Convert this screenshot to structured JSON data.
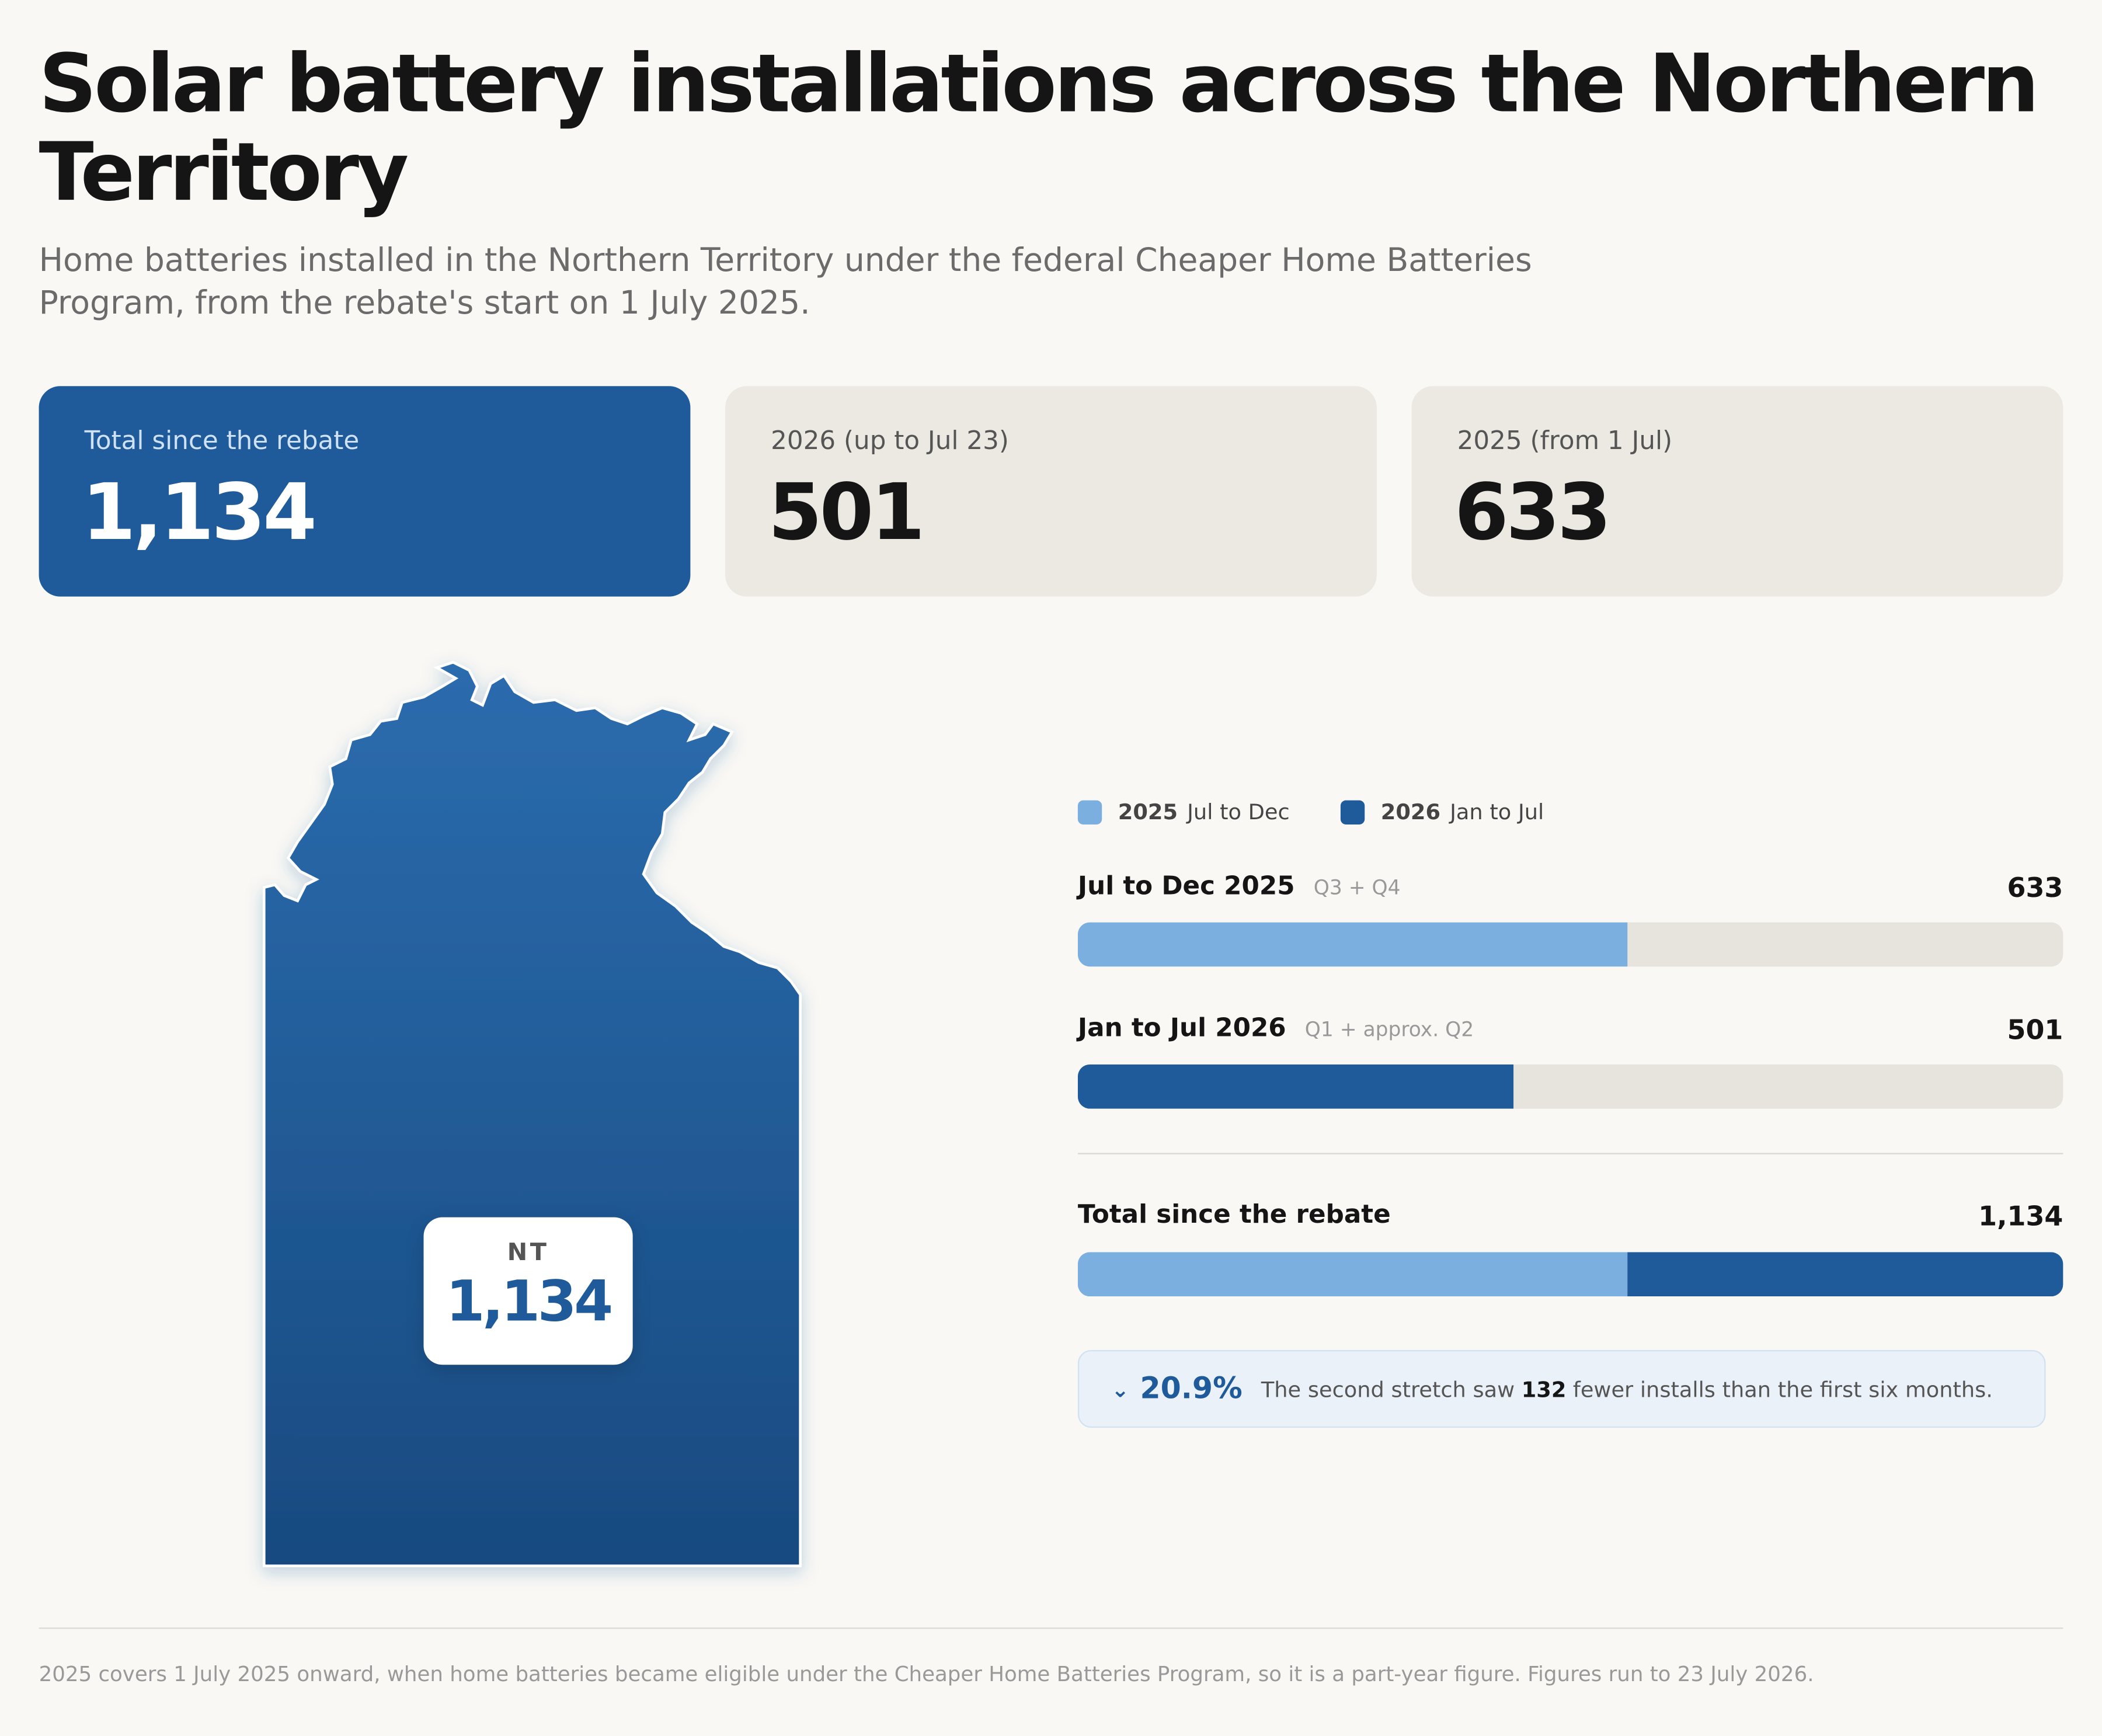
{
  "header": {
    "title": "Solar battery installations across the Northern Territory",
    "subtitle": "Home batteries installed in the Northern Territory under the federal Cheaper Home Batteries Program, from the rebate's start on 1 July 2025."
  },
  "cards": [
    {
      "label": "Total since the rebate",
      "value": "1,134"
    },
    {
      "label": "2026 (up to Jul 23)",
      "value": "501"
    },
    {
      "label": "2025 (from 1 Jul)",
      "value": "633"
    }
  ],
  "map": {
    "region": "NT",
    "value": "1,134"
  },
  "chart_data": {
    "type": "bar",
    "legend": [
      {
        "year": "2025",
        "label": "Jul to Dec"
      },
      {
        "year": "2026",
        "label": "Jan to Jul"
      }
    ],
    "colors": [
      "#7aafe0",
      "#1f5a9a"
    ],
    "categories": [
      "Jul to Dec 2025",
      "Jan to Jul 2026"
    ],
    "category_notes": [
      "Q3 + Q4",
      "Q1 + approx. Q2"
    ],
    "values": [
      633,
      501
    ],
    "total": {
      "label": "Total since the rebate",
      "value": 1134,
      "value_label": "1,134"
    }
  },
  "note": {
    "change": "20.9%",
    "text_before": "The second stretch saw",
    "count": "132",
    "text_after": "fewer installs than the first six months."
  },
  "footer": "2025 covers 1 July 2025 onward, when home batteries became eligible under the Cheaper Home Batteries Program, so it is a part-year figure. Figures run to 23 July 2026."
}
